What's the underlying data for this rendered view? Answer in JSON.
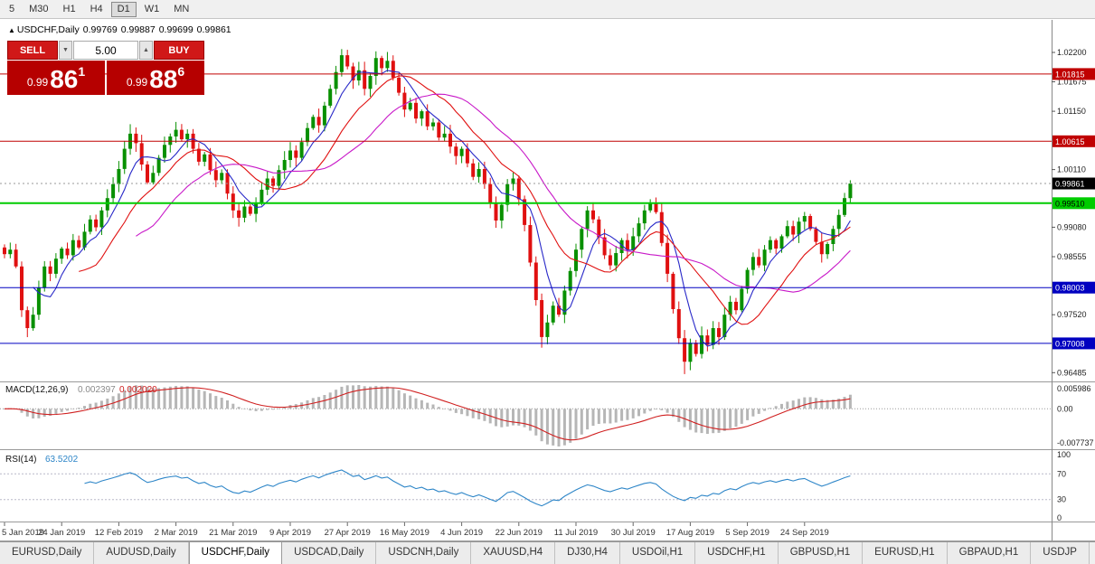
{
  "toolbar": {
    "timeframes": [
      "5",
      "M30",
      "H1",
      "H4",
      "D1",
      "W1",
      "MN"
    ],
    "active": "D1"
  },
  "chart": {
    "title": {
      "marker": "▲",
      "symbol_period": "USDCHF,Daily",
      "open": "0.99769",
      "high": "0.99887",
      "low": "0.99699",
      "close": "0.99861"
    },
    "trade_panel": {
      "sell_label": "SELL",
      "buy_label": "BUY",
      "volume": "5.00",
      "volume_up_icon": "▲",
      "volume_down_icon": "▼",
      "sell_price": {
        "prefix": "0.99",
        "big": "86",
        "sup": "1"
      },
      "buy_price": {
        "prefix": "0.99",
        "big": "88",
        "sup": "6"
      }
    },
    "colors": {
      "candle_up": "#089000",
      "candle_down": "#e01010",
      "background": "#ffffff",
      "axis_text": "#222222"
    },
    "levels": [
      {
        "label": "1.01815",
        "price": 1.01815,
        "color": "#c00000",
        "text_color": "#ffffff",
        "width": 1
      },
      {
        "label": "1.00615",
        "price": 1.00615,
        "color": "#c00000",
        "text_color": "#ffffff",
        "width": 1
      },
      {
        "label": "0.99510",
        "price": 0.9951,
        "color": "#00cc00",
        "text_color": "#000000",
        "width": 2
      },
      {
        "label": "0.98003",
        "price": 0.98003,
        "color": "#0000c0",
        "text_color": "#ffffff",
        "width": 1
      },
      {
        "label": "0.97008",
        "price": 0.97008,
        "color": "#0000c0",
        "text_color": "#ffffff",
        "width": 1
      }
    ],
    "current_price": {
      "label": "0.99861",
      "price": 0.99861,
      "bg": "#000000",
      "text_color": "#ffffff"
    },
    "y_axis": {
      "ticks": [
        {
          "label": "1.02200",
          "price": 1.022
        },
        {
          "label": "1.01675",
          "price": 1.01675
        },
        {
          "label": "1.01150",
          "price": 1.0115
        },
        {
          "label": "1.00110",
          "price": 1.0011
        },
        {
          "label": "0.99080",
          "price": 0.9908
        },
        {
          "label": "0.98555",
          "price": 0.98555
        },
        {
          "label": "0.97520",
          "price": 0.9752
        },
        {
          "label": "0.96485",
          "price": 0.96485
        }
      ]
    }
  },
  "chart_data": {
    "type": "candlestick",
    "symbol": "USDCHF",
    "period": "Daily",
    "x_labels": [
      "5 Jan 2019",
      "24 Jan 2019",
      "12 Feb 2019",
      "2 Mar 2019",
      "21 Mar 2019",
      "9 Apr 2019",
      "27 Apr 2019",
      "16 May 2019",
      "4 Jun 2019",
      "22 Jun 2019",
      "11 Jul 2019",
      "30 Jul 2019",
      "17 Aug 2019",
      "5 Sep 2019",
      "24 Sep 2019"
    ],
    "x_label_every": 10,
    "y_range": [
      0.9635,
      1.0264
    ],
    "closes": [
      0.986,
      0.9868,
      0.9838,
      0.976,
      0.9728,
      0.9752,
      0.98,
      0.9838,
      0.9825,
      0.9852,
      0.987,
      0.9858,
      0.9885,
      0.9872,
      0.99,
      0.9922,
      0.9908,
      0.9938,
      0.996,
      0.9985,
      1.0012,
      1.0048,
      1.0075,
      1.0058,
      1.002,
      0.9988,
      1.0005,
      1.0032,
      1.0055,
      1.007,
      1.0082,
      1.0065,
      1.0075,
      1.0048,
      1.0025,
      1.0038,
      1.001,
      0.9992,
      1.0005,
      0.9968,
      0.9938,
      0.9925,
      0.9945,
      0.9932,
      0.9952,
      0.9975,
      0.9995,
      0.9982,
      1.001,
      1.0028,
      1.0045,
      1.0032,
      1.006,
      1.0085,
      1.0105,
      1.009,
      1.0125,
      1.0155,
      1.0185,
      1.0215,
      1.0195,
      1.017,
      1.0188,
      1.0155,
      1.0178,
      1.021,
      1.0192,
      1.0205,
      1.0175,
      1.0148,
      1.0118,
      1.013,
      1.0102,
      1.0115,
      1.0088,
      1.0095,
      1.0068,
      1.0075,
      1.0052,
      1.0035,
      1.0048,
      1.0022,
      0.9998,
      1.0012,
      0.9985,
      0.9952,
      0.992,
      0.9948,
      0.9985,
      0.9995,
      0.9958,
      0.9912,
      0.9845,
      0.9778,
      0.9712,
      0.9738,
      0.9768,
      0.9752,
      0.9795,
      0.983,
      0.9868,
      0.9905,
      0.9938,
      0.9922,
      0.989,
      0.9858,
      0.984,
      0.9862,
      0.9885,
      0.9868,
      0.9892,
      0.9915,
      0.9938,
      0.995,
      0.9935,
      0.988,
      0.9825,
      0.9762,
      0.971,
      0.9668,
      0.9702,
      0.9682,
      0.9715,
      0.9698,
      0.9728,
      0.9712,
      0.9752,
      0.9775,
      0.976,
      0.9798,
      0.9832,
      0.9855,
      0.984,
      0.9868,
      0.9885,
      0.987,
      0.9892,
      0.991,
      0.9895,
      0.9918,
      0.9928,
      0.9905,
      0.9882,
      0.986,
      0.9878,
      0.9905,
      0.993,
      0.996,
      0.9986
    ],
    "wick_overrides": {
      "4": {
        "low": 0.9712
      },
      "22": {
        "high": 1.0092
      },
      "30": {
        "high": 1.0096
      },
      "59": {
        "high": 1.0226
      },
      "65": {
        "high": 1.0222
      },
      "94": {
        "low": 0.9693
      },
      "113": {
        "high": 0.9958
      },
      "119": {
        "low": 0.9646
      },
      "143": {
        "low": 0.9845
      },
      "148": {
        "high": 0.9992
      }
    },
    "indicators": {
      "ma": [
        {
          "period": 6,
          "color": "#2828c8"
        },
        {
          "period": 14,
          "color": "#e01010"
        },
        {
          "period": 24,
          "color": "#c818c8"
        }
      ],
      "macd": {
        "label": "MACD(12,26,9)",
        "value_main": "0.002397",
        "value_signal": "0.002020",
        "axis_labels": [
          "0.005986",
          "0.00",
          "-0.007737"
        ],
        "histogram_color": "#b6b6b6",
        "signal_color": "#d02020",
        "value_main_color": "#8a8a8a"
      },
      "rsi": {
        "label": "RSI(14)",
        "value": "63.5202",
        "axis_labels": [
          "100",
          "70",
          "30",
          "0"
        ],
        "levels": [
          70,
          30
        ],
        "color": "#2e86c8"
      }
    }
  },
  "tabs": {
    "items": [
      "EURUSD,Daily",
      "AUDUSD,Daily",
      "USDCHF,Daily",
      "USDCAD,Daily",
      "USDCNH,Daily",
      "XAUUSD,H4",
      "DJ30,H4",
      "USDOil,H1",
      "USDCHF,H1",
      "GBPUSD,H1",
      "EURUSD,H1",
      "GBPAUD,H1",
      "USDJP"
    ],
    "active_index": 2
  }
}
